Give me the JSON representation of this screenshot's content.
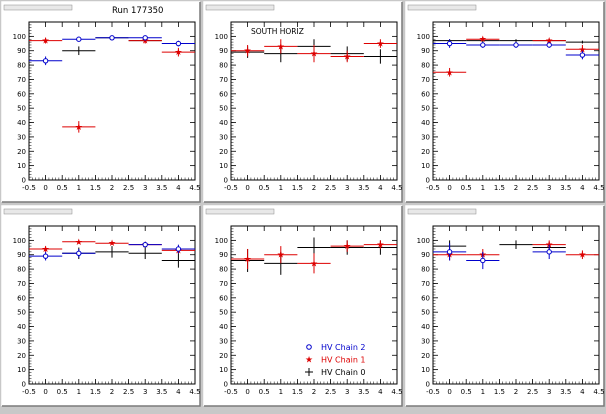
{
  "run_label": "Run 177350",
  "region_label": "SOUTH HORIZ",
  "legend": {
    "items": [
      {
        "label": "HV Chain 2",
        "color": "#0000cc",
        "marker": "circle"
      },
      {
        "label": "HV Chain 1",
        "color": "#dd0000",
        "marker": "star"
      },
      {
        "label": "HV Chain 0",
        "color": "#000000",
        "marker": "cross"
      }
    ]
  },
  "chart_data": [
    {
      "type": "scatter",
      "title": "",
      "xlim": [
        -0.5,
        4.5
      ],
      "ylim": [
        0,
        110
      ],
      "xticks": [
        "-0.5",
        "0",
        "0.5",
        "1",
        "1.5",
        "2",
        "2.5",
        "3",
        "3.5",
        "4",
        "4.5"
      ],
      "yticks": [
        "0",
        "10",
        "20",
        "30",
        "40",
        "50",
        "60",
        "70",
        "80",
        "90",
        "100"
      ],
      "series": [
        {
          "name": "HV Chain 2",
          "x": [
            0,
            1,
            2,
            3,
            4
          ],
          "y": [
            83,
            98,
            99,
            99,
            95
          ],
          "yerr": [
            3,
            1,
            1,
            1,
            2
          ]
        },
        {
          "name": "HV Chain 1",
          "x": [
            0,
            1,
            3,
            4
          ],
          "y": [
            97,
            37,
            97,
            89
          ],
          "yerr": [
            2,
            4,
            2,
            3
          ]
        },
        {
          "name": "HV Chain 0",
          "x": [
            1,
            2,
            3
          ],
          "y": [
            90,
            99,
            97
          ],
          "yerr": [
            3,
            1,
            1
          ]
        }
      ]
    },
    {
      "type": "scatter",
      "title": "",
      "xlim": [
        -0.5,
        4.5
      ],
      "ylim": [
        0,
        110
      ],
      "xticks": [
        "-0.5",
        "0",
        "0.5",
        "1",
        "1.5",
        "2",
        "2.5",
        "3",
        "3.5",
        "4",
        "4.5"
      ],
      "yticks": [
        "0",
        "10",
        "20",
        "30",
        "40",
        "50",
        "60",
        "70",
        "80",
        "90",
        "100"
      ],
      "series": [
        {
          "name": "HV Chain 2",
          "x": [],
          "y": [],
          "yerr": []
        },
        {
          "name": "HV Chain 1",
          "x": [
            0,
            1,
            2,
            3,
            4
          ],
          "y": [
            90,
            93,
            88,
            86,
            95
          ],
          "yerr": [
            4,
            5,
            6,
            4,
            3
          ]
        },
        {
          "name": "HV Chain 0",
          "x": [
            0,
            1,
            2,
            3,
            4
          ],
          "y": [
            89,
            88,
            93,
            88,
            86
          ],
          "yerr": [
            4,
            6,
            5,
            5,
            5
          ]
        }
      ]
    },
    {
      "type": "scatter",
      "title": "",
      "xlim": [
        -0.5,
        4.5
      ],
      "ylim": [
        0,
        110
      ],
      "xticks": [
        "-0.5",
        "0",
        "0.5",
        "1",
        "1.5",
        "2",
        "2.5",
        "3",
        "3.5",
        "4",
        "4.5"
      ],
      "yticks": [
        "0",
        "10",
        "20",
        "30",
        "40",
        "50",
        "60",
        "70",
        "80",
        "90",
        "100"
      ],
      "series": [
        {
          "name": "HV Chain 2",
          "x": [
            0,
            1,
            2,
            3,
            4
          ],
          "y": [
            95,
            94,
            94,
            94,
            87
          ],
          "yerr": [
            3,
            2,
            2,
            2,
            3
          ]
        },
        {
          "name": "HV Chain 1",
          "x": [
            0,
            1,
            3,
            4
          ],
          "y": [
            75,
            98,
            97,
            91
          ],
          "yerr": [
            3,
            1,
            1,
            3
          ]
        },
        {
          "name": "HV Chain 0",
          "x": [
            0,
            1,
            2,
            3,
            4
          ],
          "y": [
            97,
            97,
            97,
            97,
            96
          ],
          "yerr": [
            1,
            1,
            1,
            1,
            1
          ]
        }
      ]
    },
    {
      "type": "scatter",
      "title": "",
      "xlim": [
        -0.5,
        4.5
      ],
      "ylim": [
        0,
        110
      ],
      "xticks": [
        "-0.5",
        "0",
        "0.5",
        "1",
        "1.5",
        "2",
        "2.5",
        "3",
        "3.5",
        "4",
        "4.5"
      ],
      "yticks": [
        "0",
        "10",
        "20",
        "30",
        "40",
        "50",
        "60",
        "70",
        "80",
        "90",
        "100"
      ],
      "series": [
        {
          "name": "HV Chain 2",
          "x": [
            0,
            1,
            3,
            4
          ],
          "y": [
            89,
            91,
            97,
            94
          ],
          "yerr": [
            3,
            3,
            2,
            3
          ]
        },
        {
          "name": "HV Chain 1",
          "x": [
            0,
            1,
            2,
            3,
            4
          ],
          "y": [
            94,
            99,
            98,
            97,
            93
          ],
          "yerr": [
            2,
            1,
            1,
            1,
            2
          ]
        },
        {
          "name": "HV Chain 0",
          "x": [
            1,
            2,
            3,
            4
          ],
          "y": [
            91,
            92,
            91,
            86
          ],
          "yerr": [
            4,
            4,
            4,
            5
          ]
        }
      ]
    },
    {
      "type": "scatter",
      "title": "",
      "xlim": [
        -0.5,
        4.5
      ],
      "ylim": [
        0,
        110
      ],
      "xticks": [
        "-0.5",
        "0",
        "0.5",
        "1",
        "1.5",
        "2",
        "2.5",
        "3",
        "3.5",
        "4",
        "4.5"
      ],
      "yticks": [
        "0",
        "10",
        "20",
        "30",
        "40",
        "50",
        "60",
        "70",
        "80",
        "90",
        "100"
      ],
      "series": [
        {
          "name": "HV Chain 2",
          "x": [],
          "y": [],
          "yerr": []
        },
        {
          "name": "HV Chain 1",
          "x": [
            0,
            1,
            2,
            3,
            4
          ],
          "y": [
            87,
            90,
            84,
            96,
            97
          ],
          "yerr": [
            7,
            6,
            7,
            4,
            3
          ]
        },
        {
          "name": "HV Chain 0",
          "x": [
            0,
            1,
            2,
            3,
            4
          ],
          "y": [
            86,
            84,
            95,
            95,
            95
          ],
          "yerr": [
            8,
            8,
            7,
            5,
            5
          ]
        }
      ]
    },
    {
      "type": "scatter",
      "title": "",
      "xlim": [
        -0.5,
        4.5
      ],
      "ylim": [
        0,
        110
      ],
      "xticks": [
        "-0.5",
        "0",
        "0.5",
        "1",
        "1.5",
        "2",
        "2.5",
        "3",
        "3.5",
        "4",
        "4.5"
      ],
      "yticks": [
        "0",
        "10",
        "20",
        "30",
        "40",
        "50",
        "60",
        "70",
        "80",
        "90",
        "100"
      ],
      "series": [
        {
          "name": "HV Chain 2",
          "x": [
            0,
            1,
            3
          ],
          "y": [
            92,
            86,
            92
          ],
          "yerr": [
            6,
            6,
            5
          ]
        },
        {
          "name": "HV Chain 1",
          "x": [
            0,
            1,
            3,
            4
          ],
          "y": [
            90,
            90,
            97,
            90
          ],
          "yerr": [
            4,
            4,
            3,
            3
          ]
        },
        {
          "name": "HV Chain 0",
          "x": [
            0,
            2,
            3
          ],
          "y": [
            96,
            97,
            95
          ],
          "yerr": [
            4,
            3,
            4
          ]
        }
      ]
    }
  ]
}
